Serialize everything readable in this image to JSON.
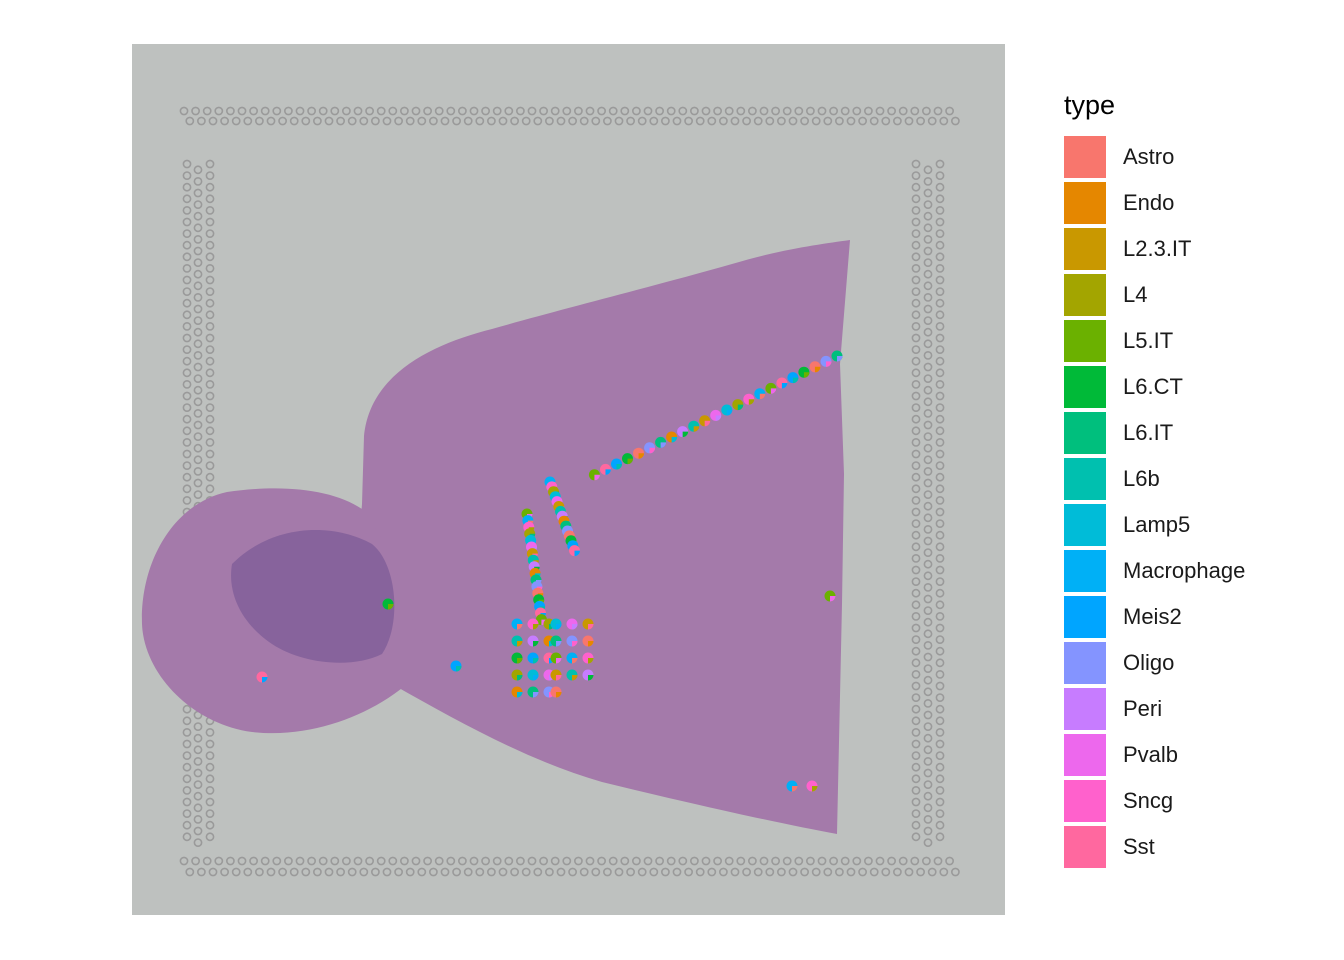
{
  "legend": {
    "title": "type",
    "items": [
      {
        "label": "Astro",
        "color": "#F8766D"
      },
      {
        "label": "Endo",
        "color": "#E58700"
      },
      {
        "label": "L2.3.IT",
        "color": "#C99800"
      },
      {
        "label": "L4",
        "color": "#A3A500"
      },
      {
        "label": "L5.IT",
        "color": "#6BB100"
      },
      {
        "label": "L6.CT",
        "color": "#00BA38"
      },
      {
        "label": "L6.IT",
        "color": "#00BF7D"
      },
      {
        "label": "L6b",
        "color": "#00C0AF"
      },
      {
        "label": "Lamp5",
        "color": "#00BCD8"
      },
      {
        "label": "Macrophage",
        "color": "#00B0F6"
      },
      {
        "label": "Meis2",
        "color": "#00A5FF"
      },
      {
        "label": "Oligo",
        "color": "#8494FF"
      },
      {
        "label": "Peri",
        "color": "#C77CFF"
      },
      {
        "label": "Pvalb",
        "color": "#ED68ED"
      },
      {
        "label": "Sncg",
        "color": "#FF61CC"
      },
      {
        "label": "Sst",
        "color": "#FF689F"
      }
    ]
  },
  "image": {
    "background_color": "#BEC1BF",
    "tissue_color": "#A47AAA",
    "tissue_dark_color": "#7A5A95",
    "fiducial_color": "#9A9A9A"
  }
}
